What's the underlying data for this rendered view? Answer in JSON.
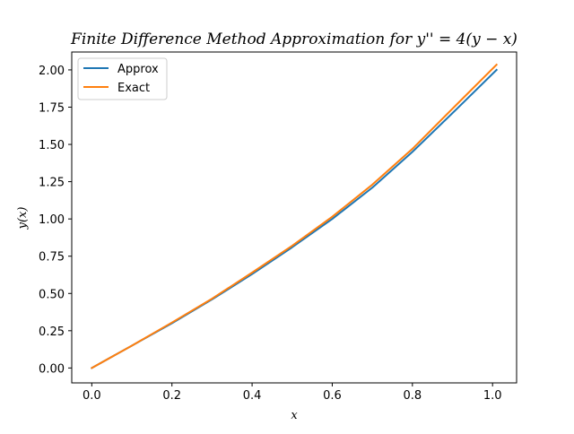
{
  "chart_data": {
    "type": "line",
    "title": "Finite Difference Method Approximation for y'' = 4(y − x)",
    "xlabel": "x",
    "ylabel": "y(x)",
    "xlim": [
      -0.05,
      1.06
    ],
    "ylim": [
      -0.1,
      2.12
    ],
    "xticks": [
      0.0,
      0.2,
      0.4,
      0.6,
      0.8,
      1.0
    ],
    "xtick_labels": [
      "0.0",
      "0.2",
      "0.4",
      "0.6",
      "0.8",
      "1.0"
    ],
    "yticks": [
      0.0,
      0.25,
      0.5,
      0.75,
      1.0,
      1.25,
      1.5,
      1.75,
      2.0
    ],
    "ytick_labels": [
      "0.00",
      "0.25",
      "0.50",
      "0.75",
      "1.00",
      "1.25",
      "1.50",
      "1.75",
      "2.00"
    ],
    "grid": false,
    "legend_position": "top-left",
    "x": [
      0.0,
      0.1,
      0.2,
      0.3,
      0.4,
      0.5,
      0.6,
      0.7,
      0.8,
      0.9,
      1.01
    ],
    "series": [
      {
        "name": "Approx",
        "color": "#1f77b4",
        "values": [
          0.0,
          0.15,
          0.3,
          0.46,
          0.63,
          0.81,
          1.0,
          1.21,
          1.45,
          1.71,
          2.0
        ]
      },
      {
        "name": "Exact",
        "color": "#ff7f0e",
        "values": [
          0.0,
          0.15,
          0.305,
          0.465,
          0.64,
          0.82,
          1.015,
          1.23,
          1.47,
          1.74,
          2.035
        ]
      }
    ]
  }
}
